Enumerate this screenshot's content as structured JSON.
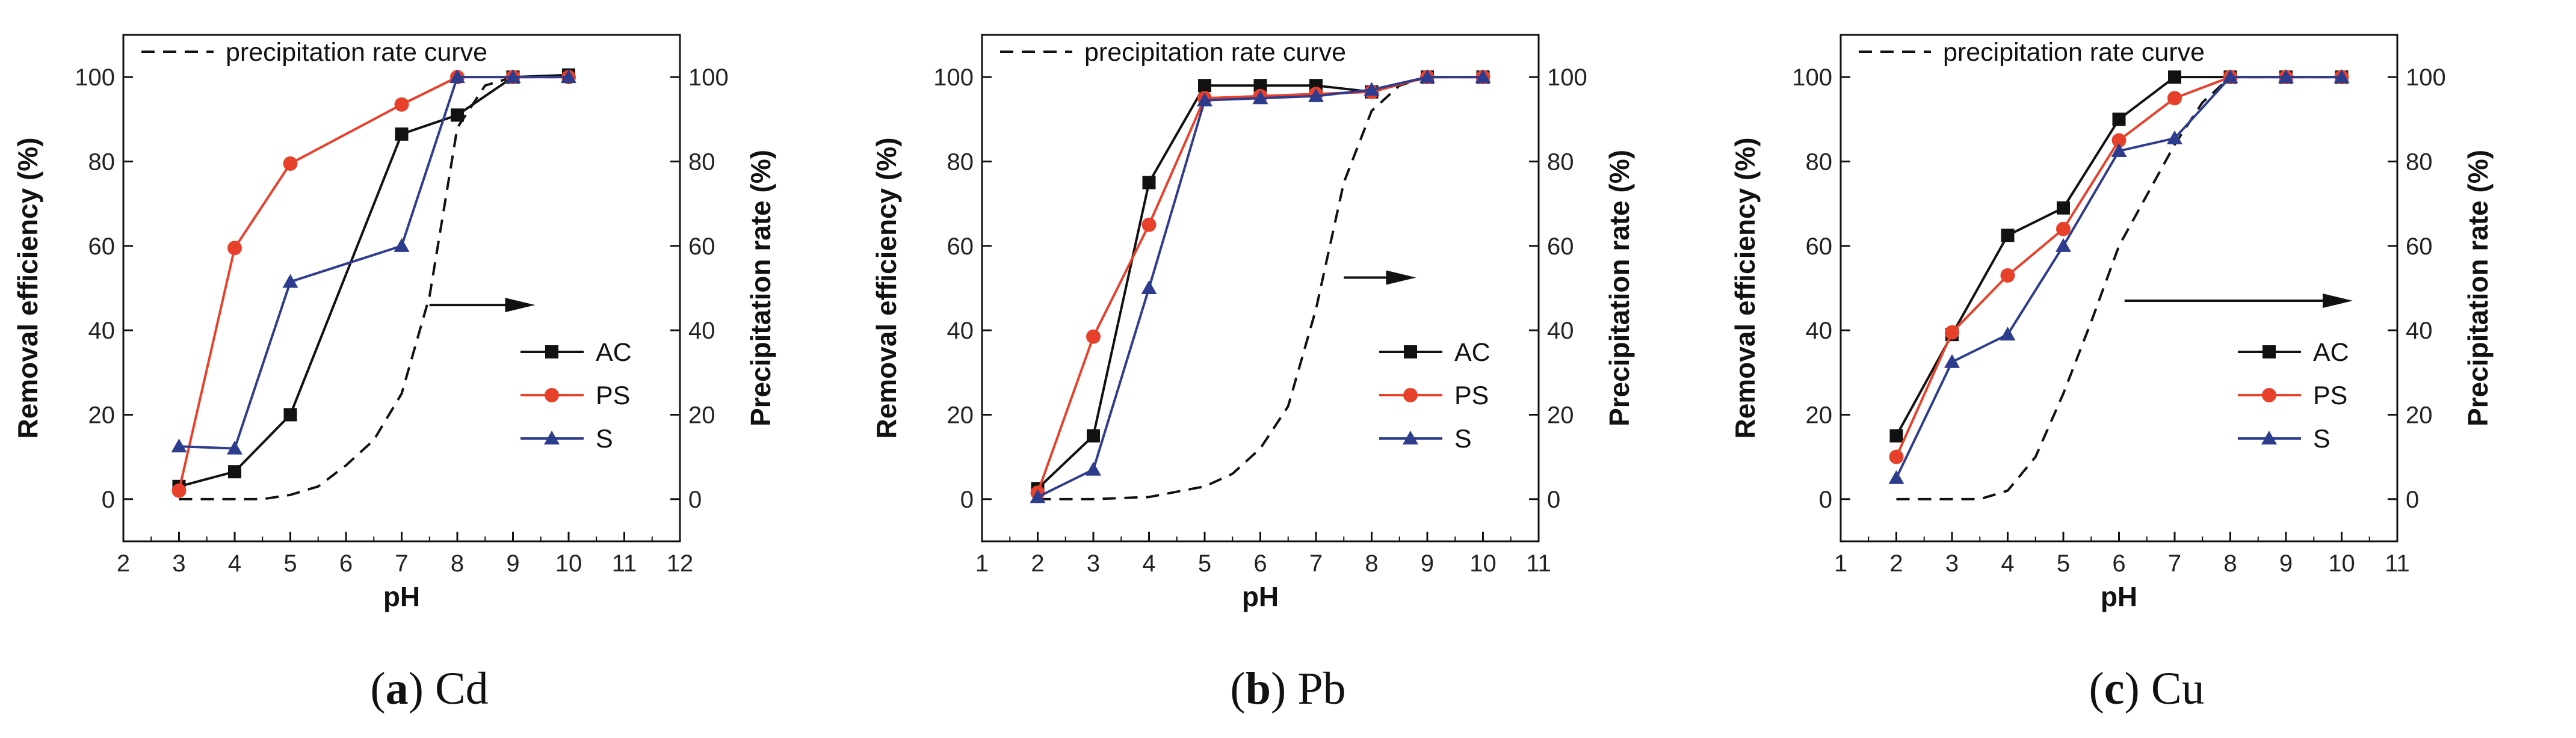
{
  "chart_data": [
    {
      "type": "line",
      "caption_letter": "a",
      "caption_text": "Cd",
      "xlabel": "pH",
      "ylabel": "Removal efficiency (%)",
      "y2label": "Precipitation rate (%)",
      "xlim": [
        2,
        12
      ],
      "xticks": [
        2,
        3,
        4,
        5,
        6,
        7,
        8,
        9,
        10,
        11,
        12
      ],
      "ylim": [
        -10,
        110
      ],
      "yticks": [
        0,
        20,
        40,
        60,
        80,
        100
      ],
      "y2ticks": [
        0,
        20,
        40,
        60,
        80,
        100
      ],
      "curve_label": "precipitation rate curve",
      "legend_position": "lower-right",
      "series": [
        {
          "name": "AC",
          "color": "#111111",
          "marker": "square",
          "x": [
            3,
            4,
            5,
            7,
            8,
            9,
            10
          ],
          "y": [
            3,
            6.5,
            20,
            86.5,
            91,
            100,
            100.5
          ]
        },
        {
          "name": "PS",
          "color": "#e8412b",
          "marker": "circle",
          "x": [
            3,
            4,
            5,
            7,
            8,
            9,
            10
          ],
          "y": [
            2,
            59.5,
            79.5,
            93.5,
            100,
            100,
            100
          ]
        },
        {
          "name": "S",
          "color": "#2e3c8e",
          "marker": "triangle",
          "x": [
            3,
            4,
            5,
            7,
            8,
            9,
            10
          ],
          "y": [
            12.5,
            12,
            51.5,
            60,
            100,
            100,
            100
          ]
        }
      ],
      "precipitation_curve": {
        "x": [
          3,
          3.5,
          4,
          4.5,
          5,
          5.5,
          6,
          6.5,
          7,
          7.5,
          8,
          8.5,
          9,
          9.5,
          10
        ],
        "y": [
          0,
          0,
          0,
          0,
          1,
          3,
          8,
          14,
          25,
          48,
          88,
          98,
          100,
          100,
          100
        ]
      },
      "arrow": {
        "x1": 7.5,
        "x2": 9.4,
        "y": 46
      }
    },
    {
      "type": "line",
      "caption_letter": "b",
      "caption_text": "Pb",
      "xlabel": "pH",
      "ylabel": "Removal efficiency (%)",
      "y2label": "Precipitation rate (%)",
      "xlim": [
        1,
        11
      ],
      "xticks": [
        1,
        2,
        3,
        4,
        5,
        6,
        7,
        8,
        9,
        10,
        11
      ],
      "ylim": [
        -10,
        110
      ],
      "yticks": [
        0,
        20,
        40,
        60,
        80,
        100
      ],
      "y2ticks": [
        0,
        20,
        40,
        60,
        80,
        100
      ],
      "curve_label": "precipitation rate curve",
      "legend_position": "lower-right",
      "series": [
        {
          "name": "AC",
          "color": "#111111",
          "marker": "square",
          "x": [
            2,
            3,
            4,
            5,
            6,
            7,
            8,
            9,
            10
          ],
          "y": [
            2.5,
            15,
            75,
            98,
            98,
            98,
            96.5,
            100,
            100
          ]
        },
        {
          "name": "PS",
          "color": "#e8412b",
          "marker": "circle",
          "x": [
            2,
            3,
            4,
            5,
            6,
            7,
            8,
            9,
            10
          ],
          "y": [
            1.5,
            38.5,
            65,
            95,
            95.5,
            96,
            96.5,
            100,
            100
          ]
        },
        {
          "name": "S",
          "color": "#2e3c8e",
          "marker": "triangle",
          "x": [
            2,
            3,
            4,
            5,
            6,
            7,
            8,
            9,
            10
          ],
          "y": [
            0.5,
            7,
            50,
            94.5,
            95,
            95.5,
            97,
            100,
            100
          ]
        }
      ],
      "precipitation_curve": {
        "x": [
          2,
          3,
          4,
          5,
          5.5,
          6,
          6.5,
          7,
          7.5,
          8,
          8.5,
          9,
          10
        ],
        "y": [
          0,
          0,
          0.5,
          3,
          6,
          12,
          22,
          45,
          75,
          92,
          98,
          100,
          100
        ]
      },
      "arrow": {
        "x1": 7.5,
        "x2": 8.8,
        "y": 52.5
      }
    },
    {
      "type": "line",
      "caption_letter": "c",
      "caption_text": "Cu",
      "xlabel": "pH",
      "ylabel": "Removal efficiency (%)",
      "y2label": "Precipitation rate (%)",
      "xlim": [
        1,
        11
      ],
      "xticks": [
        1,
        2,
        3,
        4,
        5,
        6,
        7,
        8,
        9,
        10,
        11
      ],
      "ylim": [
        -10,
        110
      ],
      "yticks": [
        0,
        20,
        40,
        60,
        80,
        100
      ],
      "y2ticks": [
        0,
        20,
        40,
        60,
        80,
        100
      ],
      "curve_label": "precipitation rate curve",
      "legend_position": "lower-right",
      "series": [
        {
          "name": "AC",
          "color": "#111111",
          "marker": "square",
          "x": [
            2,
            3,
            4,
            5,
            6,
            7,
            8,
            9,
            10
          ],
          "y": [
            15,
            39,
            62.5,
            69,
            90,
            100,
            100,
            100,
            100
          ]
        },
        {
          "name": "PS",
          "color": "#e8412b",
          "marker": "circle",
          "x": [
            2,
            3,
            4,
            5,
            6,
            7,
            8,
            9,
            10
          ],
          "y": [
            10,
            39.5,
            53,
            64,
            85,
            95,
            100,
            100,
            100
          ]
        },
        {
          "name": "S",
          "color": "#2e3c8e",
          "marker": "triangle",
          "x": [
            2,
            3,
            4,
            5,
            6,
            7,
            8,
            9,
            10
          ],
          "y": [
            5,
            32.5,
            39,
            60,
            82.5,
            85.5,
            100,
            100,
            100
          ]
        }
      ],
      "precipitation_curve": {
        "x": [
          2,
          3,
          3.5,
          4,
          4.5,
          5,
          5.5,
          6,
          6.5,
          7,
          7.5,
          8,
          9,
          10
        ],
        "y": [
          0,
          0,
          0,
          2,
          10,
          25,
          42,
          60,
          72,
          84,
          94,
          100,
          100,
          100
        ]
      },
      "arrow": {
        "x1": 6.1,
        "x2": 10.2,
        "y": 47
      }
    }
  ]
}
